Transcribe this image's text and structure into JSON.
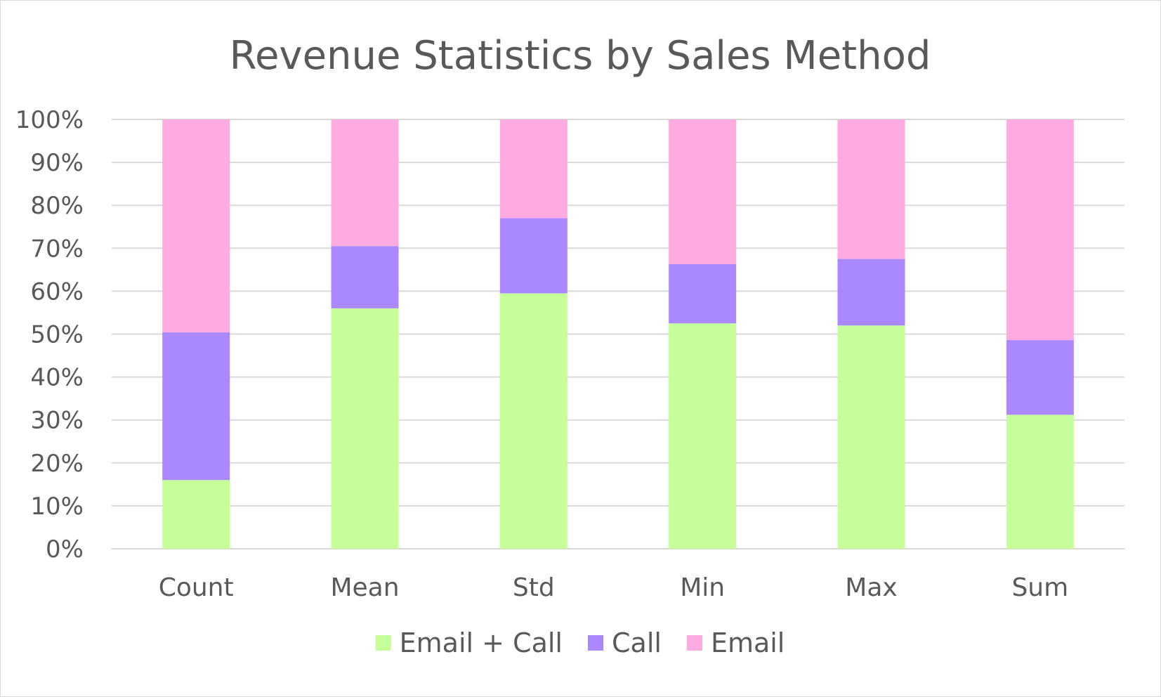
{
  "chart_data": {
    "type": "bar",
    "stacked": true,
    "percent_stacked": true,
    "title": "Revenue Statistics by Sales Method",
    "categories": [
      "Count",
      "Mean",
      "Std",
      "Min",
      "Max",
      "Sum"
    ],
    "series": [
      {
        "name": "Email + Call",
        "color": "#c6ff99",
        "values": [
          16,
          56,
          59.5,
          52.5,
          52,
          31.2
        ]
      },
      {
        "name": "Call",
        "color": "#aa88ff",
        "values": [
          34.4,
          14.5,
          17.5,
          13.8,
          15.5,
          17.4
        ]
      },
      {
        "name": "Email",
        "color": "#ffaae1",
        "values": [
          49.6,
          29.5,
          23,
          33.7,
          32.5,
          51.4
        ]
      }
    ],
    "ylim": [
      0,
      100
    ],
    "yticks": [
      "0%",
      "10%",
      "20%",
      "30%",
      "40%",
      "50%",
      "60%",
      "70%",
      "80%",
      "90%",
      "100%"
    ],
    "grid": true,
    "legend_position": "bottom"
  }
}
